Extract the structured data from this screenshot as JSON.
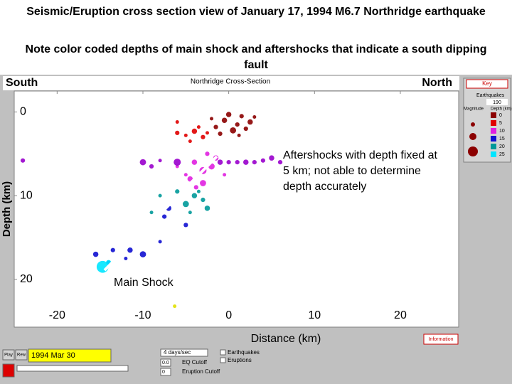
{
  "slide": {
    "title": "Seismic/Eruption cross section view of January 17, 1994 M6.7 Northridge earthquake",
    "subtitle": "Note color coded depths of main shock and aftershocks that indicate a south dipping fault"
  },
  "window": {
    "left_label": "South",
    "right_label": "North",
    "panel_title": "Northridge Cross-Section"
  },
  "chart_data": {
    "type": "scatter",
    "xlabel": "Distance (km)",
    "ylabel": "Depth (km)",
    "annotations": [
      "Aftershocks with depth fixed at 5 km; not able to determine depth accurately",
      "Main Shock"
    ],
    "xlim": [
      -25,
      26.8
    ],
    "xticks": [
      -20,
      -10,
      0,
      10,
      20
    ],
    "ylim": [
      -2.5,
      25.7
    ],
    "yticks": [
      0,
      10,
      20
    ],
    "y_inverted": true,
    "grid": false,
    "x": [
      0,
      1.5,
      -0.5,
      1,
      2.5,
      -1.5,
      0.5,
      2,
      -2,
      3,
      -1,
      1.2,
      -6,
      -5,
      -4,
      -3,
      -2.5,
      -4.5,
      -3.5,
      -6,
      -4,
      -3,
      -2,
      -4.5,
      -3.8,
      -1.5,
      -2.5,
      -5,
      -3,
      -6,
      -0.5,
      -24,
      -10,
      -6,
      -1,
      0,
      1,
      2,
      3,
      4,
      5,
      6,
      8,
      9,
      -9,
      -8,
      -7,
      -7.5,
      -5,
      -15.5,
      -14,
      -13.5,
      -11.5,
      -12,
      -8,
      -10,
      -4,
      -5,
      -3,
      -2.5,
      -6,
      -4.5,
      -3.5,
      -9,
      -8,
      -14.7,
      -14,
      -6.3
    ],
    "values": [
      0.3,
      0.5,
      1,
      1.5,
      1.2,
      1.8,
      2.2,
      2,
      0.8,
      0.6,
      2.6,
      2.8,
      2.5,
      2.8,
      2.3,
      3,
      2.5,
      3.5,
      1.8,
      1.2,
      6,
      7,
      6.5,
      8,
      9,
      5.5,
      5,
      7.5,
      8.5,
      6.5,
      7.5,
      5.8,
      6,
      6,
      6,
      6,
      6,
      6,
      6,
      5.8,
      5.5,
      6,
      6.2,
      6,
      6.5,
      5.8,
      11.5,
      12.5,
      13.5,
      17,
      18,
      16.5,
      16.5,
      17.5,
      15.5,
      17,
      10,
      11,
      10.5,
      11.5,
      9.5,
      12,
      9.5,
      12,
      10,
      18.5,
      18,
      23.2
    ],
    "sizes": [
      3,
      2.5,
      3,
      2.5,
      3,
      2.5,
      3.5,
      2.5,
      2,
      2,
      2.5,
      2,
      2.5,
      2,
      3,
      2.5,
      2,
      2,
      2,
      2,
      3,
      4,
      3.5,
      3,
      2.5,
      3,
      2.5,
      2,
      3.5,
      2,
      2,
      2.5,
      3.5,
      4,
      3,
      2.5,
      2.5,
      3,
      2.5,
      2.5,
      3,
      2.5,
      2,
      2,
      2.5,
      2,
      3,
      2.5,
      2.5,
      3,
      2.5,
      2.5,
      3,
      2,
      2,
      3.5,
      3,
      3.5,
      2.5,
      3,
      2.5,
      2,
      2,
      2,
      2,
      6.7,
      3,
      2
    ],
    "colors": [
      "#8b0000",
      "#8b0000",
      "#8b0000",
      "#8b0000",
      "#8b0000",
      "#8b0000",
      "#8b0000",
      "#8b0000",
      "#8b0000",
      "#8b0000",
      "#8b0000",
      "#8b0000",
      "#e00000",
      "#e00000",
      "#e00000",
      "#e00000",
      "#e00000",
      "#e00000",
      "#e00000",
      "#e00000",
      "#e020e0",
      "#e020e0",
      "#e020e0",
      "#e020e0",
      "#e020e0",
      "#e020e0",
      "#e020e0",
      "#e020e0",
      "#e020e0",
      "#e020e0",
      "#e020e0",
      "#9900cc",
      "#9900cc",
      "#9900cc",
      "#9900cc",
      "#9900cc",
      "#9900cc",
      "#9900cc",
      "#9900cc",
      "#9900cc",
      "#9900cc",
      "#9900cc",
      "#9900cc",
      "#9900cc",
      "#9900cc",
      "#9900cc",
      "#1010d0",
      "#1010d0",
      "#1010d0",
      "#1010d0",
      "#1010d0",
      "#1010d0",
      "#1010d0",
      "#1010d0",
      "#1010d0",
      "#1010d0",
      "#009999",
      "#009999",
      "#009999",
      "#009999",
      "#009999",
      "#009999",
      "#009999",
      "#009999",
      "#009999",
      "#00e5ff",
      "#00e5ff",
      "#e0e000"
    ]
  },
  "key": {
    "title": "Key",
    "heading": "Earthquakes",
    "count": "190",
    "magnitude_label": "Magnitude",
    "depth_label": "Depth (km)",
    "depths": [
      "0",
      "5",
      "10",
      "15",
      "20",
      "25"
    ],
    "colors": [
      "#8b0000",
      "#e00000",
      "#e020e0",
      "#1010d0",
      "#009999",
      "#00e5ff"
    ]
  },
  "toolbar": {
    "play": "Play",
    "rew": "Rew",
    "date": "1994 Mar 30",
    "speed": "4 days/sec",
    "eq_cutoff_value": "0.0",
    "eq_cutoff": "EQ Cutoff",
    "eruption_cutoff_value": "0",
    "eruption_cutoff": "Eruption Cutoff",
    "earthquakes": "Earthquakes",
    "eruptions": "Eruptions",
    "information": "Information"
  }
}
